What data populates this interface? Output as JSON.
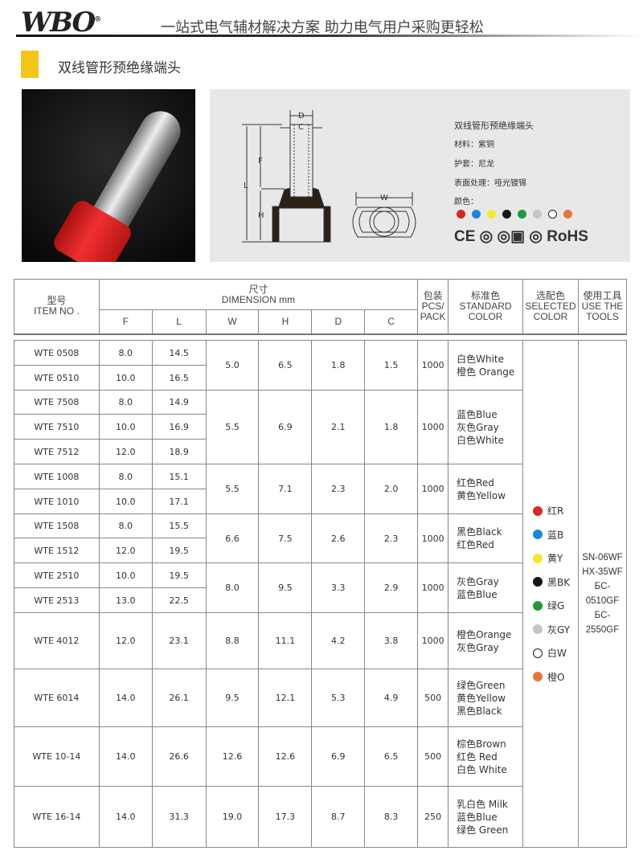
{
  "header": {
    "logo": "WBO",
    "slogan": "一站式电气辅材解决方案  助力电气用户采购更轻松"
  },
  "section_title": "双线管形预绝缘端头",
  "diagram": {
    "labels": {
      "D": "D",
      "C": "C",
      "F": "F",
      "L": "L",
      "H": "H",
      "W": "W"
    }
  },
  "spec": {
    "name": "双线管形预绝缘端头",
    "material": "材料：紫铜",
    "sleeve": "护套：尼龙",
    "surface": "表面处理：哑光镀锡",
    "color_label": "颜色：",
    "colors": [
      "#d42a1f",
      "#1e88d8",
      "#f5ea2a",
      "#161616",
      "#1f9a3a",
      "#c4c4c4",
      "#ffffff",
      "#e8763a"
    ],
    "certs": "CE ◎ ◎▣ ◎ RoHS"
  },
  "table": {
    "headers": {
      "item_cn": "型号",
      "item_en": "ITEM NO .",
      "dim_cn": "尺寸",
      "dim_en": "DIMENSION mm",
      "cols": [
        "F",
        "L",
        "W",
        "H",
        "D",
        "C"
      ],
      "pack_cn": "包装",
      "pack_en": "PCS/ PACK",
      "std_cn": "标准色",
      "std_en": "STANDARD COLOR",
      "sel_cn": "选配色",
      "sel_en": "SELECTED COLOR",
      "tools_cn": "使用工具",
      "tools_en": "USE THE TOOLS"
    },
    "groups": [
      {
        "W": "5.0",
        "H": "6.5",
        "D": "1.8",
        "C": "1.5",
        "pack": "1000",
        "colors": [
          "白色White",
          "橙色 Orange"
        ],
        "items": [
          {
            "item": "WTE 0508",
            "F": "8.0",
            "L": "14.5"
          },
          {
            "item": "WTE 0510",
            "F": "10.0",
            "L": "16.5"
          }
        ]
      },
      {
        "W": "5.5",
        "H": "6.9",
        "D": "2.1",
        "C": "1.8",
        "pack": "1000",
        "colors": [
          "蓝色Blue",
          "灰色Gray",
          "白色White"
        ],
        "items": [
          {
            "item": "WTE 7508",
            "F": "8.0",
            "L": "14.9"
          },
          {
            "item": "WTE 7510",
            "F": "10.0",
            "L": "16.9"
          },
          {
            "item": "WTE 7512",
            "F": "12.0",
            "L": "18.9"
          }
        ]
      },
      {
        "W": "5.5",
        "H": "7.1",
        "D": "2.3",
        "C": "2.0",
        "pack": "1000",
        "colors": [
          "红色Red",
          "黄色Yellow"
        ],
        "items": [
          {
            "item": "WTE 1008",
            "F": "8.0",
            "L": "15.1"
          },
          {
            "item": "WTE 1010",
            "F": "10.0",
            "L": "17.1"
          }
        ]
      },
      {
        "W": "6.6",
        "H": "7.5",
        "D": "2.6",
        "C": "2.3",
        "pack": "1000",
        "colors": [
          "黑色Black",
          "红色Red"
        ],
        "items": [
          {
            "item": "WTE 1508",
            "F": "8.0",
            "L": "15.5"
          },
          {
            "item": "WTE 1512",
            "F": "12.0",
            "L": "19.5"
          }
        ]
      },
      {
        "W": "8.0",
        "H": "9.5",
        "D": "3.3",
        "C": "2.9",
        "pack": "1000",
        "colors": [
          "灰色Gray",
          "蓝色Blue"
        ],
        "items": [
          {
            "item": "WTE 2510",
            "F": "10.0",
            "L": "19.5"
          },
          {
            "item": "WTE 2513",
            "F": "13.0",
            "L": "22.5"
          }
        ]
      },
      {
        "W": "8.8",
        "H": "11.1",
        "D": "4.2",
        "C": "3.8",
        "pack": "1000",
        "colors": [
          "橙色Orange",
          "灰色Gray"
        ],
        "items": [
          {
            "item": "WTE 4012",
            "F": "12.0",
            "L": "23.1"
          }
        ]
      },
      {
        "W": "9.5",
        "H": "12.1",
        "D": "5.3",
        "C": "4.9",
        "pack": "500",
        "colors": [
          "绿色Green",
          "黄色Yellow",
          "黑色Black"
        ],
        "items": [
          {
            "item": "WTE 6014",
            "F": "14.0",
            "L": "26.1"
          }
        ]
      },
      {
        "W": "12.6",
        "H": "12.6",
        "D": "6.9",
        "C": "6.5",
        "pack": "500",
        "colors": [
          "棕色Brown",
          "红色 Red",
          "白色 White"
        ],
        "items": [
          {
            "item": "WTE 10-14",
            "F": "14.0",
            "L": "26.6"
          }
        ]
      },
      {
        "W": "19.0",
        "H": "17.3",
        "D": "8.7",
        "C": "8.3",
        "pack": "250",
        "colors": [
          "乳白色 Milk",
          "蓝色Blue",
          "绿色 Green"
        ],
        "items": [
          {
            "item": "WTE 16-14",
            "F": "14.0",
            "L": "31.3"
          }
        ]
      }
    ],
    "selected_colors": [
      {
        "label": "红R",
        "color": "#d42a1f"
      },
      {
        "label": "蓝B",
        "color": "#1e88d8"
      },
      {
        "label": "黄Y",
        "color": "#f5ea2a"
      },
      {
        "label": "黑BK",
        "color": "#161616"
      },
      {
        "label": "绿G",
        "color": "#1f9a3a"
      },
      {
        "label": "灰GY",
        "color": "#c4c4c4"
      },
      {
        "label": "白W",
        "color": "#ffffff"
      },
      {
        "label": "橙O",
        "color": "#e8763a"
      }
    ],
    "tools": [
      "SN-06WF",
      "HX-35WF",
      "БC-0510GF",
      "БC-2550GF"
    ]
  }
}
